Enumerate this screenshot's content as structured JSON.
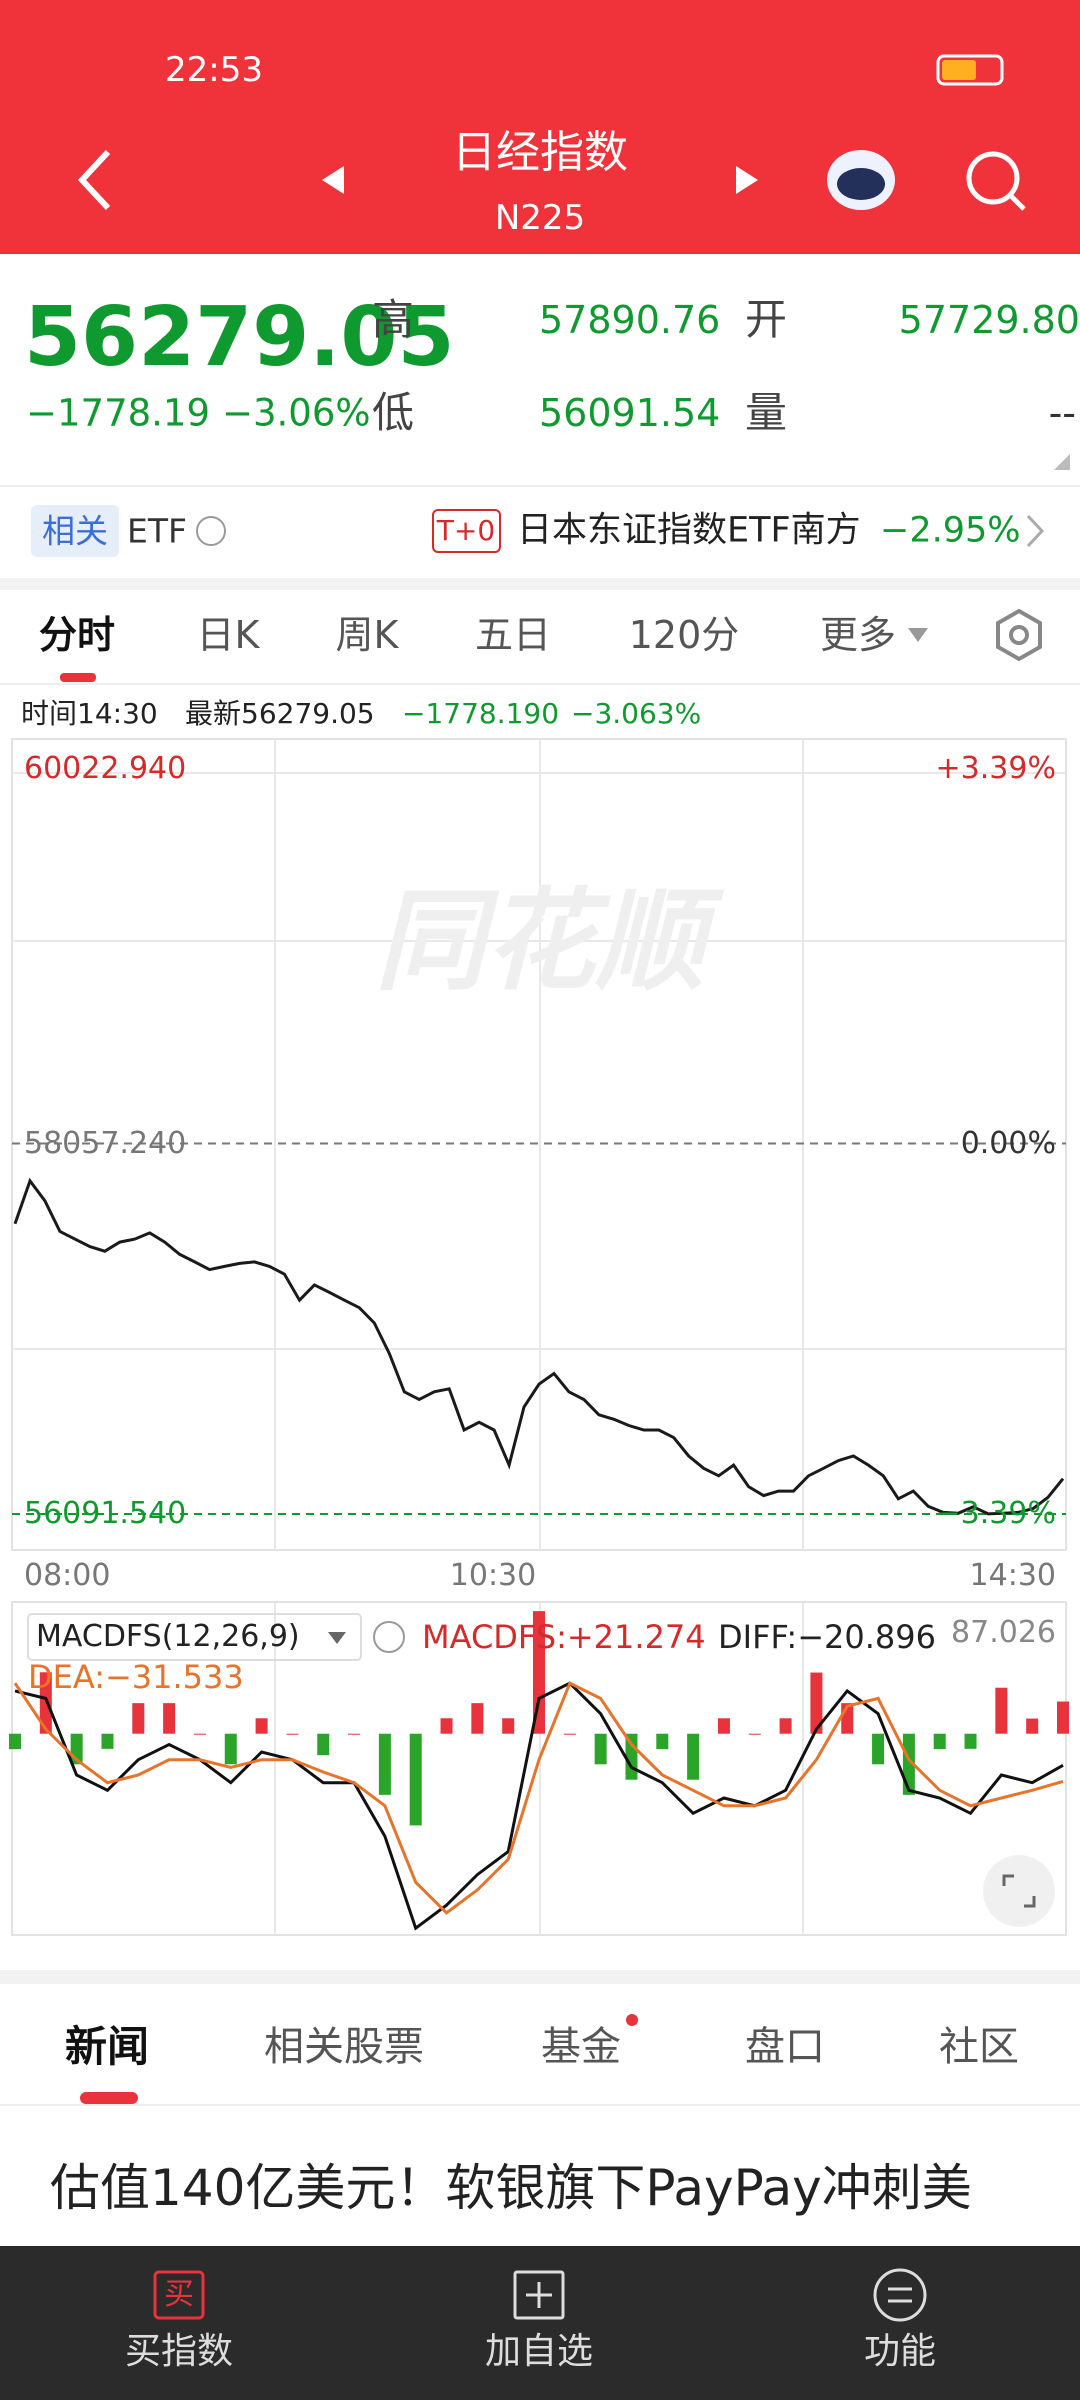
{
  "status_bar": {
    "time": "22:53"
  },
  "header": {
    "title": "日经指数",
    "code": "N225"
  },
  "quote": {
    "price": "56279.05",
    "change": "−1778.19",
    "change_pct": "−3.06%",
    "high_label": "高",
    "high": "57890.76",
    "open_label": "开",
    "open": "57729.80",
    "low_label": "低",
    "low": "56091.54",
    "volume_label": "量",
    "volume": "--"
  },
  "etf": {
    "tag": "相关",
    "label": "ETF",
    "badge": "T+0",
    "name": "日本东证指数ETF南方",
    "change": "−2.95%"
  },
  "tabs": [
    "分时",
    "日K",
    "周K",
    "五日",
    "120分",
    "更多"
  ],
  "info": {
    "time": "时间14:30",
    "latest": "最新56279.05",
    "change": "−1778.190",
    "change_pct": "−3.063%"
  },
  "price_chart": {
    "watermark": "同花顺",
    "ylim": [
      56091.54,
      60022.94
    ],
    "yticks": [
      {
        "value": 60022.94,
        "label": "60022.940"
      },
      {
        "value": 58057.24,
        "label": "58057.240"
      },
      {
        "value": 56091.54,
        "label": "56091.540"
      }
    ],
    "pct_labels": [
      "+3.39%",
      "0.00%",
      "−3.39%"
    ],
    "x_labels": [
      "08:00",
      "10:30",
      "14:30"
    ],
    "line_color": "#1a1a1a",
    "values": [
      57632,
      57859,
      57753,
      57591,
      57550,
      57510,
      57486,
      57534,
      57550,
      57583,
      57534,
      57469,
      57429,
      57388,
      57405,
      57421,
      57429,
      57405,
      57364,
      57226,
      57307,
      57267,
      57226,
      57186,
      57105,
      56943,
      56740,
      56699,
      56740,
      56756,
      56537,
      56578,
      56537,
      56351,
      56659,
      56780,
      56837,
      56740,
      56699,
      56618,
      56594,
      56561,
      56537,
      56537,
      56497,
      56399,
      56334,
      56294,
      56351,
      56237,
      56189,
      56213,
      56213,
      56294,
      56334,
      56375,
      56399,
      56351,
      56294,
      56172,
      56213,
      56132,
      56100,
      56095,
      56130,
      56092,
      56095,
      56100,
      56120,
      56180,
      56279.05
    ]
  },
  "macd": {
    "indicator": "MACDFS(12,26,9)",
    "macd_label": "MACDFS:+21.274",
    "max_tick": 87.026,
    "ylim": [
      -133,
      87.026
    ],
    "up_color": "#e8323c",
    "down_color": "#2aa52a",
    "histogram": [
      -10.2,
      40.6,
      -20.2,
      -10,
      20.2,
      20.2,
      0,
      -20.2,
      10.2,
      0,
      -14.2,
      0,
      -40.4,
      -60.6,
      10.2,
      20.2,
      10.2,
      81,
      0,
      -20.2,
      -30.4,
      -10.2,
      -30.4,
      10.2,
      0,
      10.2,
      40.4,
      20.2,
      -20.2,
      -40.4,
      -10.2,
      -10,
      30.4,
      10,
      21.274
    ],
    "diff": {
      "label": "DIFF:−20.896",
      "color": "#111111",
      "values": [
        28.3,
        23.3,
        -27.3,
        -37.4,
        -17.2,
        -7.1,
        -17.2,
        -32.4,
        -12.1,
        -17.2,
        -32.4,
        -32.4,
        -67.8,
        -128.5,
        -113.3,
        -93.1,
        -77.9,
        23.3,
        33.4,
        13.2,
        -22.3,
        -32.4,
        -52.6,
        -42.5,
        -47.6,
        -37.4,
        3.0,
        28.3,
        13.2,
        -37.4,
        -42.5,
        -52.6,
        -27.3,
        -32.4,
        -20.896
      ]
    },
    "dea": {
      "label": "DEA:−31.533",
      "color": "#e8732a",
      "values": [
        33.4,
        3.0,
        -17.2,
        -32.4,
        -27.3,
        -17.2,
        -17.2,
        -22.3,
        -17.2,
        -17.2,
        -25.3,
        -32.4,
        -47.6,
        -98.2,
        -118.4,
        -103.2,
        -83.0,
        -17.2,
        33.4,
        23.3,
        -7.1,
        -27.3,
        -37.4,
        -47.6,
        -47.6,
        -42.5,
        -17.2,
        18.2,
        23.3,
        -17.2,
        -37.4,
        -47.6,
        -42.5,
        -37.4,
        -31.533
      ]
    }
  },
  "news_tabs": [
    "新闻",
    "相关股票",
    "基金",
    "盘口",
    "社区"
  ],
  "headline": "估值140亿美元！软银旗下PayPay冲刺美",
  "bottom_nav": {
    "buy_icon": "买",
    "items": [
      "买指数",
      "加自选",
      "功能"
    ]
  }
}
